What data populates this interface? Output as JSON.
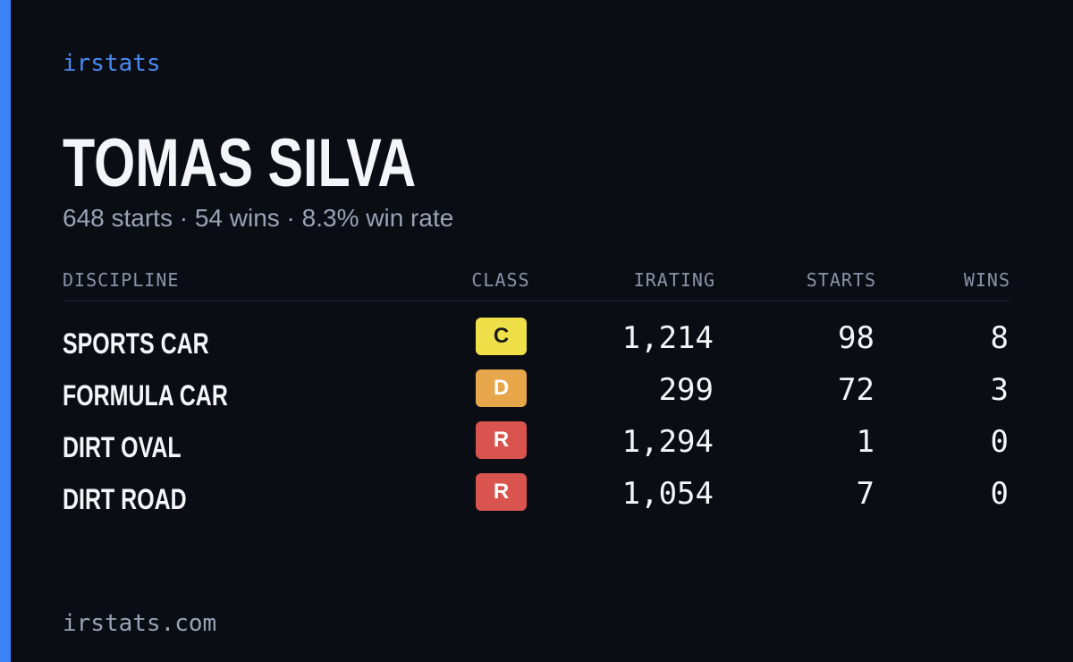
{
  "brand": "irstats",
  "player": {
    "name": "TOMAS SILVA",
    "summary": "648 starts · 54 wins · 8.3% win rate"
  },
  "table": {
    "columns": [
      "DISCIPLINE",
      "CLASS",
      "IRATING",
      "STARTS",
      "WINS"
    ],
    "rows": [
      [
        "SPORTS CAR",
        "C",
        "1,214",
        "98",
        "8"
      ],
      [
        "FORMULA CAR",
        "D",
        "299",
        "72",
        "3"
      ],
      [
        "DIRT OVAL",
        "R",
        "1,294",
        "1",
        "0"
      ],
      [
        "DIRT ROAD",
        "R",
        "1,054",
        "7",
        "0"
      ]
    ]
  },
  "badge_colors": {
    "C": {
      "bg": "#efe04a",
      "fg": "#1b1b1b"
    },
    "D": {
      "bg": "#e8a64a",
      "fg": "#ffffff"
    },
    "R": {
      "bg": "#d9534f",
      "fg": "#ffffff"
    }
  },
  "footer": "irstats.com"
}
